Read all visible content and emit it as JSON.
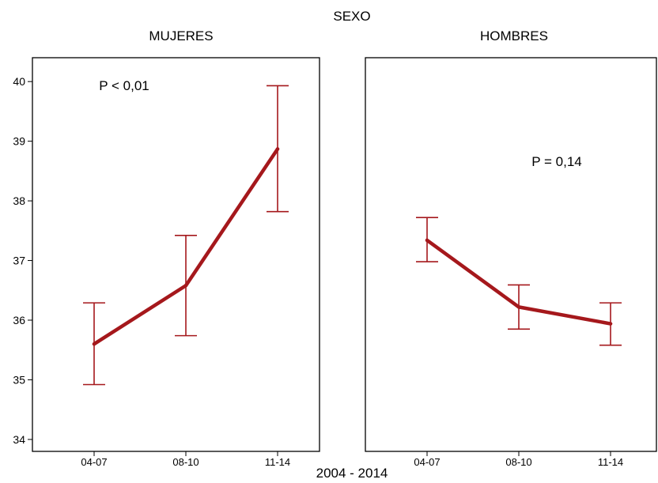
{
  "chart_data": {
    "type": "line",
    "facet_title": "SEXO",
    "xlabel": "2004 - 2014",
    "ylabel": "",
    "ylim": [
      33.8,
      40.4
    ],
    "yticks": [
      34,
      35,
      36,
      37,
      38,
      39,
      40
    ],
    "categories": [
      "04-07",
      "08-10",
      "11-14"
    ],
    "line_color": "#a5181c",
    "grid": false,
    "legend": "none",
    "panels": [
      {
        "title": "MUJERES",
        "annotation": "P < 0,01",
        "series": [
          {
            "values": [
              35.6,
              36.58,
              38.87
            ],
            "lower": [
              34.92,
              35.74,
              37.82
            ],
            "upper": [
              36.29,
              37.42,
              39.93
            ]
          }
        ]
      },
      {
        "title": "HOMBRES",
        "annotation": "P = 0,14",
        "series": [
          {
            "values": [
              37.34,
              36.22,
              35.94
            ],
            "lower": [
              36.98,
              35.85,
              35.58
            ],
            "upper": [
              37.72,
              36.59,
              36.29
            ]
          }
        ]
      }
    ]
  }
}
